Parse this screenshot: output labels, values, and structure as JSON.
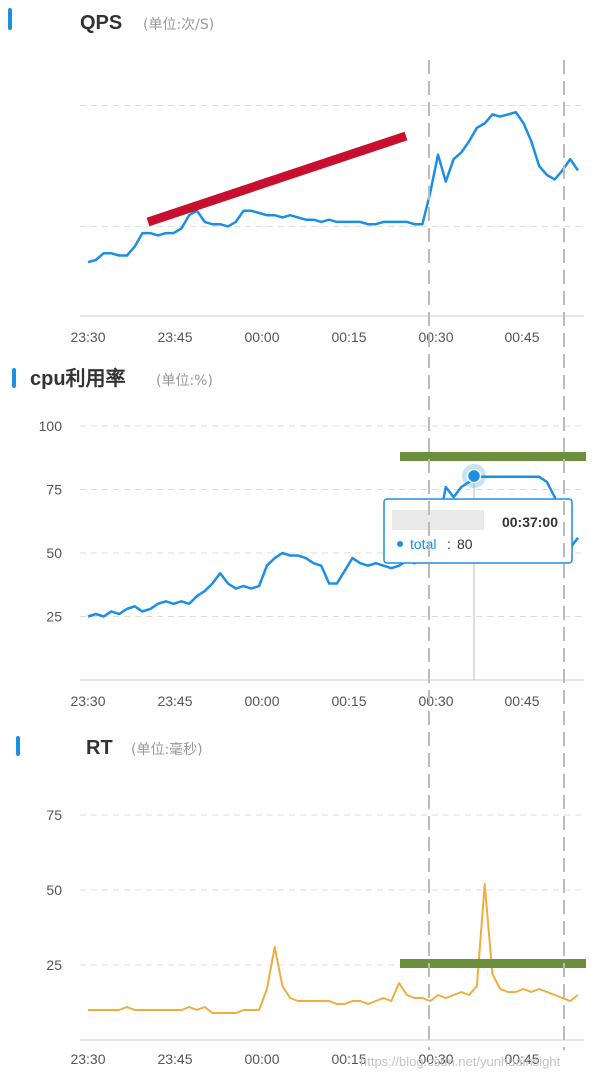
{
  "colors": {
    "blue": "#1a8fe3",
    "orange": "#f0ad3c",
    "red_annotation": "#c8102e",
    "green_annotation": "#6b8f3c",
    "title_marker": "#1a8fe3"
  },
  "charts": [
    {
      "title": "QPS",
      "unit": "(单位:次/S)"
    },
    {
      "title": "cpu利用率",
      "unit": "(单位:%)"
    },
    {
      "title": "RT",
      "unit": "(单位:毫秒)"
    }
  ],
  "tooltip": {
    "time": "00:37:00",
    "label": "total",
    "sep": ":",
    "value": "80"
  },
  "watermark": "https://blog.csdn.net/yunhuainsight",
  "chart_data": [
    {
      "type": "line",
      "title": "QPS",
      "ylabel": "(单位:次/S)",
      "x_ticks": [
        "23:30",
        "23:45",
        "00:00",
        "00:15",
        "00:30",
        "00:45"
      ],
      "y_ticks": [],
      "ylim": [
        0,
        100
      ],
      "series": [
        {
          "values": [
            [
              0,
              24
            ],
            [
              1,
              25
            ],
            [
              2,
              28
            ],
            [
              3,
              28
            ],
            [
              4,
              27
            ],
            [
              5,
              27
            ],
            [
              6,
              31
            ],
            [
              7,
              37
            ],
            [
              8,
              37
            ],
            [
              9,
              36
            ],
            [
              10,
              37
            ],
            [
              11,
              37
            ],
            [
              12,
              39
            ],
            [
              13,
              45
            ],
            [
              14,
              47
            ],
            [
              15,
              42
            ],
            [
              16,
              41
            ],
            [
              17,
              41
            ],
            [
              18,
              40
            ],
            [
              19,
              42
            ],
            [
              20,
              47
            ],
            [
              21,
              47
            ],
            [
              22,
              46
            ],
            [
              23,
              45
            ],
            [
              24,
              45
            ],
            [
              25,
              44
            ],
            [
              26,
              45
            ],
            [
              27,
              44
            ],
            [
              28,
              43
            ],
            [
              29,
              43
            ],
            [
              30,
              42
            ],
            [
              31,
              43
            ],
            [
              32,
              42
            ],
            [
              33,
              42
            ],
            [
              34,
              42
            ],
            [
              35,
              42
            ],
            [
              36,
              41
            ],
            [
              37,
              41
            ],
            [
              38,
              42
            ],
            [
              39,
              42
            ],
            [
              40,
              42
            ],
            [
              41,
              42
            ],
            [
              42,
              41
            ],
            [
              43,
              41
            ],
            [
              44,
              55
            ],
            [
              45,
              72
            ],
            [
              46,
              60
            ],
            [
              47,
              70
            ],
            [
              48,
              73
            ],
            [
              49,
              78
            ],
            [
              50,
              84
            ],
            [
              51,
              86
            ],
            [
              52,
              90
            ],
            [
              53,
              89
            ],
            [
              54,
              90
            ],
            [
              55,
              91
            ],
            [
              56,
              86
            ],
            [
              57,
              78
            ],
            [
              58,
              67
            ],
            [
              59,
              63
            ],
            [
              60,
              61
            ],
            [
              61,
              65
            ],
            [
              62,
              70
            ],
            [
              63,
              65
            ]
          ]
        }
      ],
      "annotations": [
        {
          "type": "trend_line",
          "color": "red"
        }
      ]
    },
    {
      "type": "line",
      "title": "cpu利用率",
      "ylabel": "(单位:%)",
      "x_ticks": [
        "23:30",
        "23:45",
        "00:00",
        "00:15",
        "00:30",
        "00:45"
      ],
      "y_ticks": [
        25,
        50,
        75,
        100
      ],
      "ylim": [
        0,
        100
      ],
      "series": [
        {
          "name": "total",
          "values": [
            [
              0,
              25
            ],
            [
              1,
              26
            ],
            [
              2,
              25
            ],
            [
              3,
              27
            ],
            [
              4,
              26
            ],
            [
              5,
              28
            ],
            [
              6,
              29
            ],
            [
              7,
              27
            ],
            [
              8,
              28
            ],
            [
              9,
              30
            ],
            [
              10,
              31
            ],
            [
              11,
              30
            ],
            [
              12,
              31
            ],
            [
              13,
              30
            ],
            [
              14,
              33
            ],
            [
              15,
              35
            ],
            [
              16,
              38
            ],
            [
              17,
              42
            ],
            [
              18,
              38
            ],
            [
              19,
              36
            ],
            [
              20,
              37
            ],
            [
              21,
              36
            ],
            [
              22,
              37
            ],
            [
              23,
              45
            ],
            [
              24,
              48
            ],
            [
              25,
              50
            ],
            [
              26,
              49
            ],
            [
              27,
              49
            ],
            [
              28,
              48
            ],
            [
              29,
              46
            ],
            [
              30,
              45
            ],
            [
              31,
              38
            ],
            [
              32,
              38
            ],
            [
              33,
              43
            ],
            [
              34,
              48
            ],
            [
              35,
              46
            ],
            [
              36,
              45
            ],
            [
              37,
              46
            ],
            [
              38,
              45
            ],
            [
              39,
              44
            ],
            [
              40,
              45
            ],
            [
              41,
              47
            ],
            [
              42,
              46
            ],
            [
              43,
              48
            ],
            [
              44,
              50
            ],
            [
              45,
              60
            ],
            [
              46,
              76
            ],
            [
              47,
              72
            ],
            [
              48,
              76
            ],
            [
              49,
              78
            ],
            [
              50,
              80
            ],
            [
              51,
              80
            ],
            [
              52,
              80
            ],
            [
              53,
              80
            ],
            [
              54,
              80
            ],
            [
              55,
              80
            ],
            [
              56,
              80
            ],
            [
              57,
              80
            ],
            [
              58,
              80
            ],
            [
              59,
              78
            ],
            [
              60,
              72
            ],
            [
              61,
              60
            ],
            [
              62,
              52
            ],
            [
              63,
              56
            ]
          ]
        }
      ],
      "annotations": [
        {
          "type": "threshold_line",
          "color": "green",
          "level": 87
        }
      ]
    },
    {
      "type": "line",
      "title": "RT",
      "ylabel": "(单位:毫秒)",
      "x_ticks": [
        "23:30",
        "23:45",
        "00:00",
        "00:15",
        "00:30",
        "00:45"
      ],
      "y_ticks": [
        25,
        50,
        75
      ],
      "ylim": [
        0,
        100
      ],
      "series": [
        {
          "values": [
            [
              0,
              10
            ],
            [
              1,
              10
            ],
            [
              2,
              10
            ],
            [
              3,
              10
            ],
            [
              4,
              10
            ],
            [
              5,
              11
            ],
            [
              6,
              10
            ],
            [
              7,
              10
            ],
            [
              8,
              10
            ],
            [
              9,
              10
            ],
            [
              10,
              10
            ],
            [
              11,
              10
            ],
            [
              12,
              10
            ],
            [
              13,
              11
            ],
            [
              14,
              10
            ],
            [
              15,
              11
            ],
            [
              16,
              9
            ],
            [
              17,
              9
            ],
            [
              18,
              9
            ],
            [
              19,
              9
            ],
            [
              20,
              10
            ],
            [
              21,
              10
            ],
            [
              22,
              10
            ],
            [
              23,
              17
            ],
            [
              24,
              31
            ],
            [
              25,
              18
            ],
            [
              26,
              14
            ],
            [
              27,
              13
            ],
            [
              28,
              13
            ],
            [
              29,
              13
            ],
            [
              30,
              13
            ],
            [
              31,
              13
            ],
            [
              32,
              12
            ],
            [
              33,
              12
            ],
            [
              34,
              13
            ],
            [
              35,
              13
            ],
            [
              36,
              12
            ],
            [
              37,
              13
            ],
            [
              38,
              14
            ],
            [
              39,
              13
            ],
            [
              40,
              19
            ],
            [
              41,
              15
            ],
            [
              42,
              14
            ],
            [
              43,
              14
            ],
            [
              44,
              13
            ],
            [
              45,
              15
            ],
            [
              46,
              14
            ],
            [
              47,
              15
            ],
            [
              48,
              16
            ],
            [
              49,
              15
            ],
            [
              50,
              18
            ],
            [
              51,
              52
            ],
            [
              52,
              22
            ],
            [
              53,
              17
            ],
            [
              54,
              16
            ],
            [
              55,
              16
            ],
            [
              56,
              17
            ],
            [
              57,
              16
            ],
            [
              58,
              17
            ],
            [
              59,
              16
            ],
            [
              60,
              15
            ],
            [
              61,
              14
            ],
            [
              62,
              13
            ],
            [
              63,
              15
            ]
          ]
        }
      ],
      "annotations": [
        {
          "type": "threshold_line",
          "color": "green",
          "level": 25
        }
      ]
    }
  ]
}
